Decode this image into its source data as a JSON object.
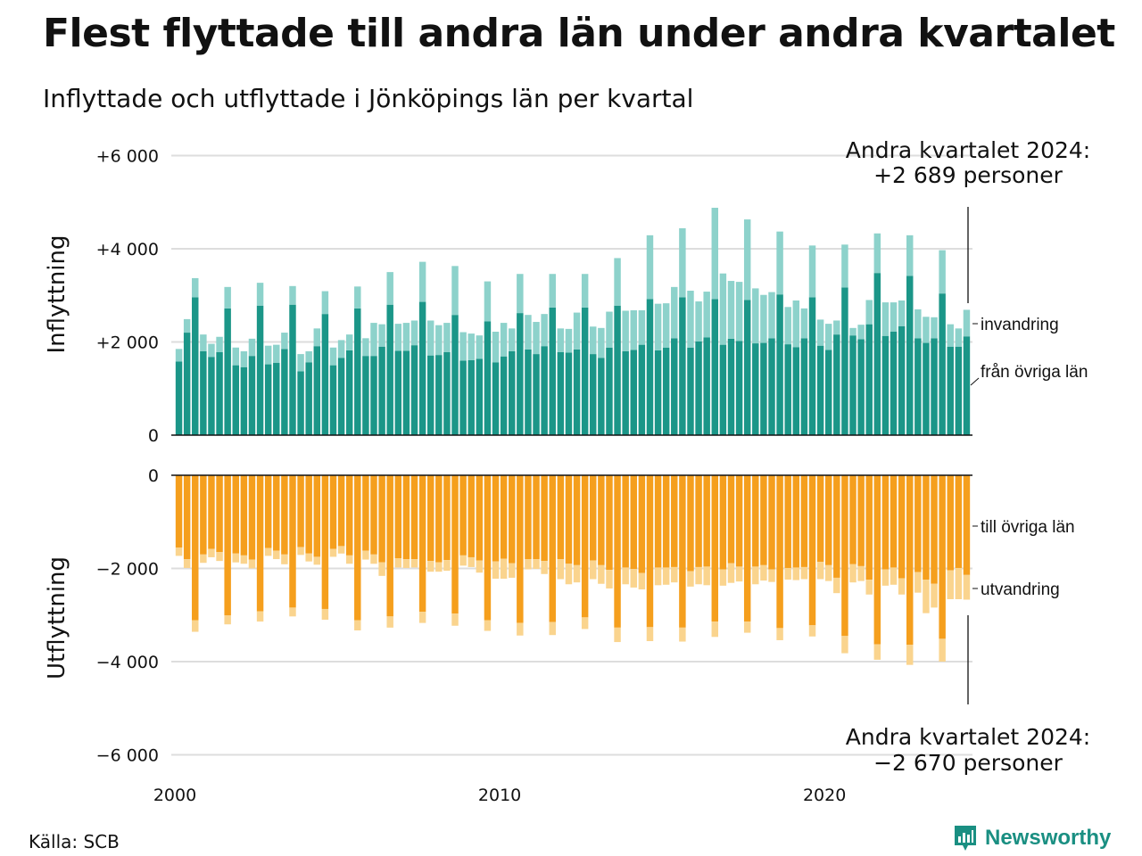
{
  "title": "Flest flyttade till andra län under andra kvartalet",
  "subtitle": "Inflyttade och utflyttade i Jönköpings län per kvartal",
  "source": "Källa: SCB",
  "brand": "Newsworthy",
  "colors": {
    "in_domestic": "#1b9688",
    "in_immigration": "#8dd2cb",
    "out_domestic": "#f59f1d",
    "out_emigration": "#fad48e",
    "grid": "#dddddd",
    "brand": "#1a8f82"
  },
  "annotations": {
    "top_line1": "Andra kvartalet 2024:",
    "top_line2": "+2 689 personer",
    "bottom_line1": "Andra kvartalet 2024:",
    "bottom_line2": "−2 670 personer"
  },
  "chart_data": [
    {
      "type": "bar",
      "stacked": true,
      "ylabel": "Inflyttning",
      "yticks": [
        "0",
        "+2 000",
        "+4 000",
        "+6 000"
      ],
      "ylim": [
        0,
        6000
      ],
      "x_start": "2000 Q1",
      "x_end": "2024 Q2",
      "xticks": [
        "2000",
        "2010",
        "2020"
      ],
      "series": [
        {
          "name": "från övriga län",
          "values": [
            1580,
            2200,
            2960,
            1800,
            1680,
            1780,
            2720,
            1500,
            1460,
            1700,
            2780,
            1520,
            1550,
            1850,
            2800,
            1370,
            1560,
            1910,
            2600,
            1500,
            1660,
            1820,
            2720,
            1700,
            1700,
            1900,
            2800,
            1810,
            1810,
            1930,
            2860,
            1710,
            1720,
            1780,
            2580,
            1600,
            1610,
            1640,
            2440,
            1560,
            1690,
            1800,
            2620,
            1840,
            1740,
            1910,
            2740,
            1780,
            1770,
            1840,
            2740,
            1740,
            1660,
            1880,
            2780,
            1800,
            1830,
            1940,
            2920,
            1820,
            1880,
            2080,
            2960,
            1880,
            2010,
            2100,
            2920,
            1940,
            2070,
            2020,
            2900,
            1970,
            1980,
            2080,
            3020,
            1950,
            1890,
            2080,
            2960,
            1920,
            1830,
            2160,
            3170,
            2140,
            2060,
            2380,
            3480,
            2130,
            2220,
            2340,
            3420,
            2080,
            1980,
            2080,
            3040,
            1900,
            1900,
            2120
          ]
        },
        {
          "name": "invandring",
          "values": [
            270,
            290,
            410,
            360,
            280,
            330,
            460,
            380,
            340,
            370,
            490,
            400,
            390,
            350,
            400,
            370,
            240,
            380,
            490,
            380,
            380,
            340,
            470,
            380,
            710,
            480,
            700,
            580,
            600,
            530,
            860,
            750,
            640,
            630,
            1050,
            610,
            570,
            500,
            860,
            660,
            720,
            490,
            840,
            740,
            690,
            690,
            720,
            510,
            510,
            790,
            720,
            590,
            640,
            770,
            1020,
            870,
            850,
            740,
            1370,
            1000,
            950,
            1100,
            1480,
            1220,
            860,
            980,
            1960,
            1530,
            1240,
            1270,
            1730,
            1180,
            1030,
            990,
            1350,
            800,
            1000,
            640,
            1110,
            560,
            560,
            300,
            920,
            160,
            310,
            520,
            850,
            720,
            630,
            550,
            870,
            620,
            560,
            450,
            930,
            480,
            390,
            570
          ]
        }
      ]
    },
    {
      "type": "bar",
      "stacked": true,
      "ylabel": "Utflyttning",
      "yticks": [
        "0",
        "−2 000",
        "−4 000",
        "−6 000"
      ],
      "ylim": [
        -6000,
        0
      ],
      "x_start": "2000 Q1",
      "x_end": "2024 Q2",
      "xticks": [
        "2000",
        "2010",
        "2020"
      ],
      "series": [
        {
          "name": "till övriga län",
          "values": [
            -1550,
            -1800,
            -3110,
            -1700,
            -1580,
            -1650,
            -3010,
            -1680,
            -1720,
            -1810,
            -2920,
            -1560,
            -1620,
            -1700,
            -2840,
            -1540,
            -1680,
            -1750,
            -2870,
            -1580,
            -1520,
            -1720,
            -3110,
            -1620,
            -1700,
            -1870,
            -3030,
            -1780,
            -1800,
            -1800,
            -2930,
            -1840,
            -1870,
            -1820,
            -2970,
            -1720,
            -1760,
            -1830,
            -3110,
            -1850,
            -1790,
            -1890,
            -3170,
            -1800,
            -1800,
            -1840,
            -3150,
            -1800,
            -1900,
            -1930,
            -3050,
            -1830,
            -1930,
            -2030,
            -3270,
            -1980,
            -2010,
            -2100,
            -3260,
            -1980,
            -1980,
            -1970,
            -3270,
            -2060,
            -1970,
            -1960,
            -3140,
            -2020,
            -1890,
            -1960,
            -3140,
            -1960,
            -1930,
            -2020,
            -3280,
            -1990,
            -1980,
            -1970,
            -3220,
            -1860,
            -1930,
            -2200,
            -3450,
            -1910,
            -1950,
            -2240,
            -3630,
            -2020,
            -1980,
            -2210,
            -3640,
            -2080,
            -2240,
            -2330,
            -3510,
            -2040,
            -1990,
            -2140
          ]
        },
        {
          "name": "utvandring",
          "values": [
            -180,
            -190,
            -250,
            -180,
            -180,
            -190,
            -190,
            -190,
            -180,
            -190,
            -220,
            -170,
            -180,
            -210,
            -190,
            -170,
            -170,
            -170,
            -230,
            -170,
            -160,
            -180,
            -220,
            -190,
            -200,
            -290,
            -240,
            -200,
            -190,
            -180,
            -240,
            -230,
            -200,
            -230,
            -260,
            -220,
            -210,
            -260,
            -230,
            -370,
            -430,
            -310,
            -270,
            -220,
            -210,
            -280,
            -280,
            -430,
            -440,
            -370,
            -250,
            -400,
            -400,
            -400,
            -310,
            -360,
            -400,
            -350,
            -300,
            -380,
            -370,
            -330,
            -300,
            -330,
            -370,
            -400,
            -330,
            -350,
            -420,
            -320,
            -240,
            -380,
            -330,
            -270,
            -260,
            -250,
            -270,
            -260,
            -240,
            -370,
            -340,
            -330,
            -370,
            -390,
            -320,
            -320,
            -330,
            -350,
            -370,
            -350,
            -430,
            -440,
            -720,
            -510,
            -490,
            -620,
            -670,
            -530
          ]
        }
      ]
    }
  ]
}
